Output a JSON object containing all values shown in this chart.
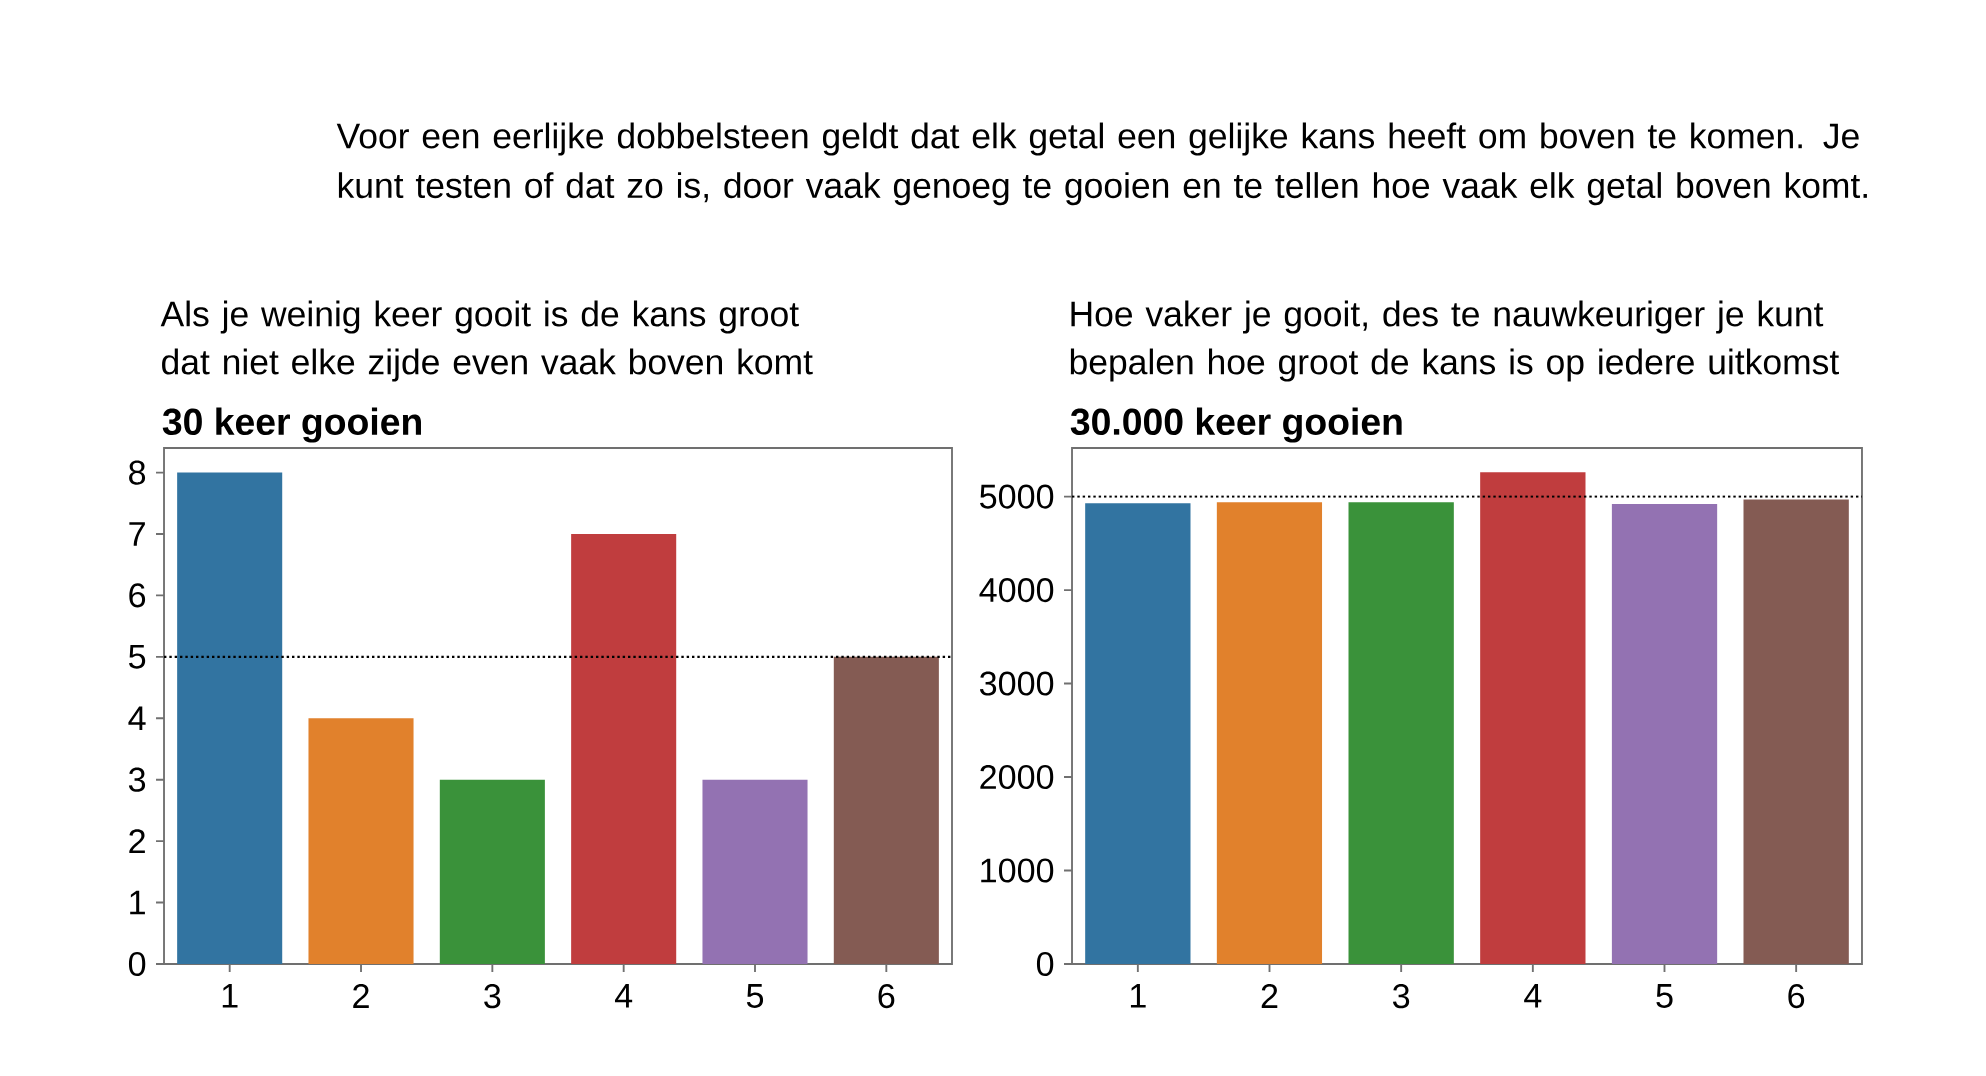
{
  "chart_data": [
    {
      "type": "other",
      "annotations": [
        "Voor een eerlijke dobbelsteen geldt dat elk getal een gelijke kans heeft om boven te komen. Je kunt testen of dat zo is, door vaak genoeg te gooien en te tellen hoe vaak elk getal boven komt."
      ]
    },
    {
      "type": "bar",
      "title": "30 keer gooien",
      "subtitle": "Als je weinig keer gooit is de kans groot dat niet elke zijde even vaak boven komt",
      "categories": [
        "1",
        "2",
        "3",
        "4",
        "5",
        "6"
      ],
      "values": [
        8,
        4,
        3,
        7,
        3,
        5
      ],
      "colors": [
        "#3274a1",
        "#e1812c",
        "#3a923a",
        "#c03d3e",
        "#9372b2",
        "#845b53"
      ],
      "ylim": [
        0,
        8.4
      ],
      "yticks": [
        0,
        1,
        2,
        3,
        4,
        5,
        6,
        7,
        8
      ],
      "ref_lines": [
        {
          "axis": "y",
          "value": 5,
          "color": "#000000",
          "line_style": "dotted"
        }
      ]
    },
    {
      "type": "bar",
      "title": "30.000 keer gooien",
      "subtitle": "Hoe vaker je gooit, des te nauwkeuriger je kunt bepalen hoe groot de kans is op iedere uitkomst",
      "categories": [
        "1",
        "2",
        "3",
        "4",
        "5",
        "6"
      ],
      "values": [
        4930,
        4940,
        4940,
        5260,
        4920,
        4970
      ],
      "colors": [
        "#3274a1",
        "#e1812c",
        "#3a923a",
        "#c03d3e",
        "#9372b2",
        "#845b53"
      ],
      "ylim": [
        0,
        5520
      ],
      "yticks": [
        0,
        1000,
        2000,
        3000,
        4000,
        5000
      ],
      "ref_lines": [
        {
          "axis": "y",
          "value": 5000,
          "color": "#000000",
          "line_style": "dotted"
        }
      ]
    }
  ]
}
